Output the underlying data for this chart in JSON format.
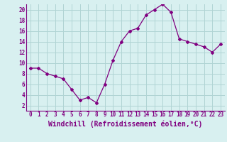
{
  "x": [
    0,
    1,
    2,
    3,
    4,
    5,
    6,
    7,
    8,
    9,
    10,
    11,
    12,
    13,
    14,
    15,
    16,
    17,
    18,
    19,
    20,
    21,
    22,
    23
  ],
  "y": [
    9.0,
    9.0,
    8.0,
    7.5,
    7.0,
    5.0,
    3.0,
    3.5,
    2.5,
    6.0,
    10.5,
    14.0,
    16.0,
    16.5,
    19.0,
    20.0,
    21.0,
    19.5,
    14.5,
    14.0,
    13.5,
    13.0,
    12.0,
    13.5
  ],
  "line_color": "#800080",
  "marker": "D",
  "marker_size": 2,
  "bg_color": "#d8f0f0",
  "grid_color": "#b0d4d4",
  "xlabel": "Windchill (Refroidissement éolien,°C)",
  "xlabel_color": "#800080",
  "xlim": [
    -0.5,
    23.5
  ],
  "ylim": [
    1,
    21
  ],
  "yticks": [
    2,
    4,
    6,
    8,
    10,
    12,
    14,
    16,
    18,
    20
  ],
  "xticks": [
    0,
    1,
    2,
    3,
    4,
    5,
    6,
    7,
    8,
    9,
    10,
    11,
    12,
    13,
    14,
    15,
    16,
    17,
    18,
    19,
    20,
    21,
    22,
    23
  ],
  "tick_color": "#800080",
  "tick_fontsize": 5.5,
  "xlabel_fontsize": 7.0,
  "linewidth": 0.9
}
